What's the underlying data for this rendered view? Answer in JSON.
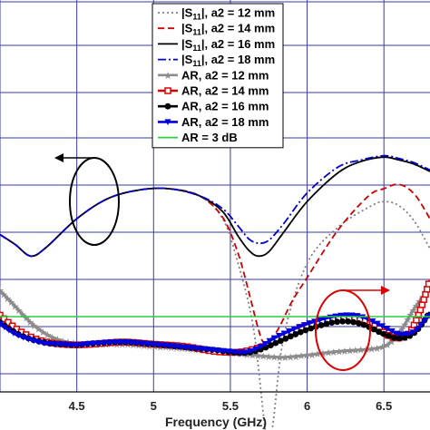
{
  "chart_data": {
    "type": "line",
    "title": "",
    "xlabel": "Frequency (GHz)",
    "ylabel": "",
    "xlim": [
      4.0,
      6.8
    ],
    "x_ticks": [
      "4.5",
      "5",
      "5.5",
      "6",
      "6.5"
    ],
    "grid": true,
    "legend_position": "top-center",
    "series": [
      {
        "name": "|S11|, a2 = 12 mm",
        "color": "#808080",
        "dash": "dot",
        "marker": "none",
        "x": [
          4.0,
          4.1,
          4.2,
          4.3,
          4.5,
          4.7,
          4.9,
          5.1,
          5.3,
          5.45,
          5.55,
          5.65,
          5.72,
          5.75,
          5.78,
          5.85,
          6.0,
          6.2,
          6.4,
          6.5,
          6.6,
          6.7,
          6.8
        ],
        "y": [
          -13.5,
          -14.2,
          -15.0,
          -14.4,
          -12.4,
          -11.0,
          -10.4,
          -10.3,
          -10.8,
          -12.4,
          -15.5,
          -20.0,
          -26.5,
          -28.5,
          -26.5,
          -20.5,
          -15.5,
          -13.0,
          -11.6,
          -11.2,
          -11.5,
          -12.6,
          -14.5
        ]
      },
      {
        "name": "|S11|, a2 = 14 mm",
        "color": "#cc0000",
        "dash": "dash",
        "marker": "none",
        "x": [
          4.0,
          4.1,
          4.2,
          4.3,
          4.5,
          4.7,
          4.9,
          5.1,
          5.3,
          5.45,
          5.55,
          5.62,
          5.68,
          5.72,
          5.8,
          5.9,
          6.0,
          6.2,
          6.4,
          6.5,
          6.6,
          6.7,
          6.8
        ],
        "y": [
          -13.5,
          -14.2,
          -15.0,
          -14.4,
          -12.4,
          -11.0,
          -10.4,
          -10.3,
          -10.8,
          -12.3,
          -14.8,
          -17.5,
          -20.0,
          -21.0,
          -20.3,
          -18.2,
          -16.5,
          -13.2,
          -10.8,
          -10.3,
          -10.0,
          -10.7,
          -12.4
        ]
      },
      {
        "name": "|S11|, a2 = 16 mm",
        "color": "#000000",
        "dash": "solid",
        "marker": "none",
        "x": [
          4.0,
          4.1,
          4.2,
          4.3,
          4.5,
          4.7,
          4.9,
          5.1,
          5.3,
          5.45,
          5.55,
          5.62,
          5.68,
          5.75,
          5.85,
          6.0,
          6.2,
          6.35,
          6.5,
          6.6,
          6.7,
          6.8
        ],
        "y": [
          -13.5,
          -14.2,
          -15.0,
          -14.4,
          -12.4,
          -11.0,
          -10.4,
          -10.3,
          -10.8,
          -11.9,
          -13.6,
          -14.6,
          -15.0,
          -14.7,
          -13.3,
          -11.2,
          -9.2,
          -8.4,
          -8.1,
          -8.3,
          -8.6,
          -9.1
        ]
      },
      {
        "name": "|S11|, a2 = 18 mm",
        "color": "#0000cc",
        "dash": "dashdot",
        "marker": "none",
        "x": [
          4.0,
          4.1,
          4.2,
          4.3,
          4.5,
          4.7,
          4.9,
          5.1,
          5.3,
          5.45,
          5.55,
          5.62,
          5.68,
          5.75,
          5.85,
          6.0,
          6.2,
          6.35,
          6.5,
          6.6,
          6.7,
          6.8
        ],
        "y": [
          -13.5,
          -14.2,
          -15.0,
          -14.4,
          -12.4,
          -11.0,
          -10.4,
          -10.3,
          -10.8,
          -11.7,
          -12.9,
          -13.8,
          -14.1,
          -13.9,
          -12.7,
          -10.6,
          -8.8,
          -8.3,
          -8.0,
          -8.2,
          -8.5,
          -9.0
        ]
      },
      {
        "name": "AR, a2 = 12 mm",
        "color": "#8c8c8c",
        "dash": "solid",
        "marker": "star",
        "x": [
          4.0,
          4.1,
          4.2,
          4.3,
          4.4,
          4.5,
          4.6,
          4.8,
          5.0,
          5.2,
          5.4,
          5.55,
          5.65,
          5.75,
          5.85,
          6.0,
          6.2,
          6.4,
          6.5,
          6.55,
          6.62,
          6.7,
          6.8
        ],
        "y": [
          4.8,
          3.7,
          2.6,
          1.8,
          1.35,
          1.15,
          1.1,
          1.1,
          0.95,
          0.8,
          0.6,
          0.45,
          0.35,
          0.25,
          0.2,
          0.35,
          0.6,
          0.75,
          0.95,
          1.3,
          2.2,
          3.6,
          5.0
        ]
      },
      {
        "name": "AR, a2 = 14 mm",
        "color": "#dd0000",
        "dash": "solid",
        "marker": "square",
        "x": [
          4.0,
          4.1,
          4.2,
          4.3,
          4.4,
          4.5,
          4.6,
          4.8,
          5.0,
          5.2,
          5.4,
          5.55,
          5.65,
          5.75,
          5.85,
          6.0,
          6.2,
          6.35,
          6.45,
          6.55,
          6.65,
          6.72,
          6.8
        ],
        "y": [
          3.1,
          2.2,
          1.6,
          1.25,
          1.1,
          1.05,
          1.1,
          1.25,
          1.1,
          0.95,
          0.6,
          0.55,
          0.75,
          1.1,
          1.7,
          2.4,
          2.9,
          2.8,
          2.3,
          1.6,
          1.7,
          3.0,
          5.5
        ]
      },
      {
        "name": "AR, a2 = 16 mm",
        "color": "#000000",
        "dash": "solid",
        "marker": "circle",
        "x": [
          4.0,
          4.1,
          4.2,
          4.3,
          4.4,
          4.5,
          4.6,
          4.8,
          5.0,
          5.2,
          5.4,
          5.5,
          5.6,
          5.7,
          5.8,
          6.0,
          6.2,
          6.35,
          6.5,
          6.6,
          6.7,
          6.8
        ],
        "y": [
          2.6,
          1.9,
          1.45,
          1.2,
          1.1,
          1.05,
          1.15,
          1.25,
          1.1,
          0.9,
          0.7,
          0.55,
          0.5,
          0.75,
          1.2,
          2.1,
          2.65,
          2.5,
          1.8,
          1.5,
          1.9,
          3.3
        ]
      },
      {
        "name": "AR, a2 = 18 mm",
        "color": "#0000dd",
        "dash": "solid",
        "marker": "triangle-down",
        "x": [
          4.0,
          4.1,
          4.2,
          4.3,
          4.4,
          4.5,
          4.6,
          4.8,
          5.0,
          5.2,
          5.4,
          5.5,
          5.6,
          5.7,
          5.8,
          6.0,
          6.2,
          6.35,
          6.5,
          6.6,
          6.7,
          6.8
        ],
        "y": [
          2.5,
          1.8,
          1.4,
          1.15,
          1.1,
          1.05,
          1.15,
          1.25,
          1.1,
          0.9,
          0.7,
          0.6,
          0.55,
          0.95,
          1.6,
          2.5,
          3.05,
          3.0,
          2.3,
          1.8,
          2.0,
          3.2
        ]
      },
      {
        "name": "AR = 3 dB",
        "color": "#2ecc40",
        "dash": "solid",
        "marker": "none",
        "x": [
          4.0,
          6.8
        ],
        "y": [
          3.0,
          3.0
        ]
      }
    ],
    "annotations": [
      {
        "type": "circle-arrow",
        "series_group": "|S11|",
        "direction": "left",
        "color": "#000000"
      },
      {
        "type": "circle-arrow",
        "series_group": "AR",
        "direction": "right",
        "color": "#dd0000"
      }
    ]
  }
}
